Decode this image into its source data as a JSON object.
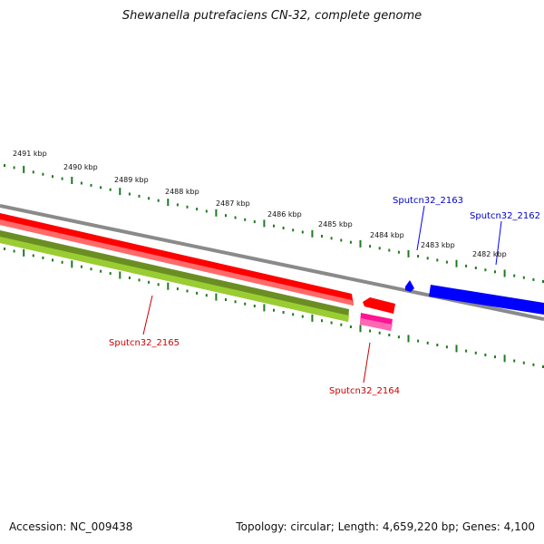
{
  "title": "Shewanella putrefaciens CN-32, complete genome",
  "footer": {
    "accession": "Accession: NC_009438",
    "summary": "Topology: circular; Length: 4,659,220 bp; Genes: 4,100"
  },
  "colors": {
    "backbone": "#8a8a8a",
    "ruler": "#1f7a1f",
    "forward_cds": "#ff0000",
    "forward_cds_small": "#0000ff",
    "reverse_cds": "#6b8e23",
    "reverse_cds_small": "#ff1493",
    "label_forward": "#0000cc",
    "label_reverse": "#cc0000"
  },
  "scale": {
    "labels": [
      "2491 kbp",
      "2490 kbp",
      "2489 kbp",
      "2488 kbp",
      "2487 kbp",
      "2486 kbp",
      "2485 kbp",
      "2484 kbp",
      "2483 kbp",
      "2482 kbp"
    ]
  },
  "features": [
    {
      "id": "fwd-red",
      "strand": "forward",
      "color": "#ff0000",
      "label": ""
    },
    {
      "id": "Sputcn32_2163",
      "strand": "forward",
      "color": "#0000ff",
      "label": "Sputcn32_2163"
    },
    {
      "id": "Sputcn32_2162",
      "strand": "forward",
      "color": "#0000ff",
      "label": "Sputcn32_2162"
    },
    {
      "id": "Sputcn32_2165",
      "strand": "reverse",
      "color": "#6b8e23",
      "label": "Sputcn32_2165"
    },
    {
      "id": "Sputcn32_2164",
      "strand": "reverse",
      "color": "#ff1493",
      "label": "Sputcn32_2164"
    }
  ]
}
